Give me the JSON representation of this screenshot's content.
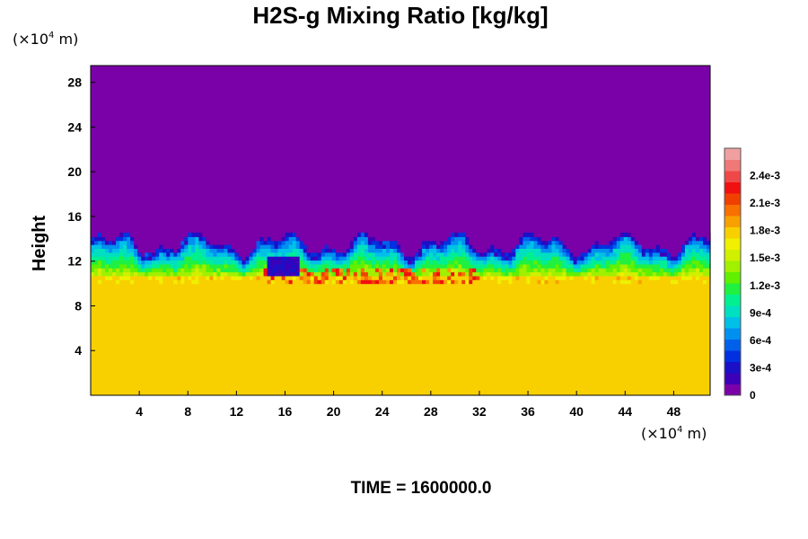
{
  "chart_data": {
    "type": "heatmap",
    "title": "H2S-g Mixing Ratio [kg/kg]",
    "xlabel": "",
    "ylabel": "Height",
    "x_unit": {
      "prefix": "(×10",
      "exp": "4",
      "suffix": " m)"
    },
    "y_unit": {
      "prefix": "(×10",
      "exp": "4",
      "suffix": " m)"
    },
    "x_ticks": [
      "4",
      "8",
      "12",
      "16",
      "20",
      "24",
      "28",
      "32",
      "36",
      "40",
      "44",
      "48"
    ],
    "y_ticks": [
      "4",
      "8",
      "12",
      "16",
      "20",
      "24",
      "28"
    ],
    "xlim": [
      0,
      51
    ],
    "ylim": [
      0,
      29.5
    ],
    "colorbar": {
      "range": [
        0,
        0.0027
      ],
      "tick_labels": [
        "0",
        "3e-4",
        "6e-4",
        "9e-4",
        "1.2e-3",
        "1.5e-3",
        "1.8e-3",
        "2.1e-3",
        "2.4e-3"
      ],
      "tick_values": [
        0,
        0.0003,
        0.0006,
        0.0009,
        0.0012,
        0.0015,
        0.0018,
        0.0021,
        0.0024
      ],
      "colors": [
        "#7a00a8",
        "#3c00b8",
        "#1a10c8",
        "#0030e0",
        "#0060ec",
        "#0090f0",
        "#00c0e8",
        "#00e0c0",
        "#00f090",
        "#20f040",
        "#60f000",
        "#a0f000",
        "#d0f000",
        "#f0f000",
        "#f8d000",
        "#f8a000",
        "#f87000",
        "#f04000",
        "#f01010",
        "#f04848",
        "#f07878",
        "#f0a0a0"
      ]
    },
    "field_description": {
      "upper_layer_value": 0,
      "lower_layer_value": 0.00175,
      "lower_layer_top": 10,
      "mixing_zone": [
        10,
        14
      ],
      "max_value": 0.0023
    },
    "time_label": "TIME = 1600000.0"
  }
}
